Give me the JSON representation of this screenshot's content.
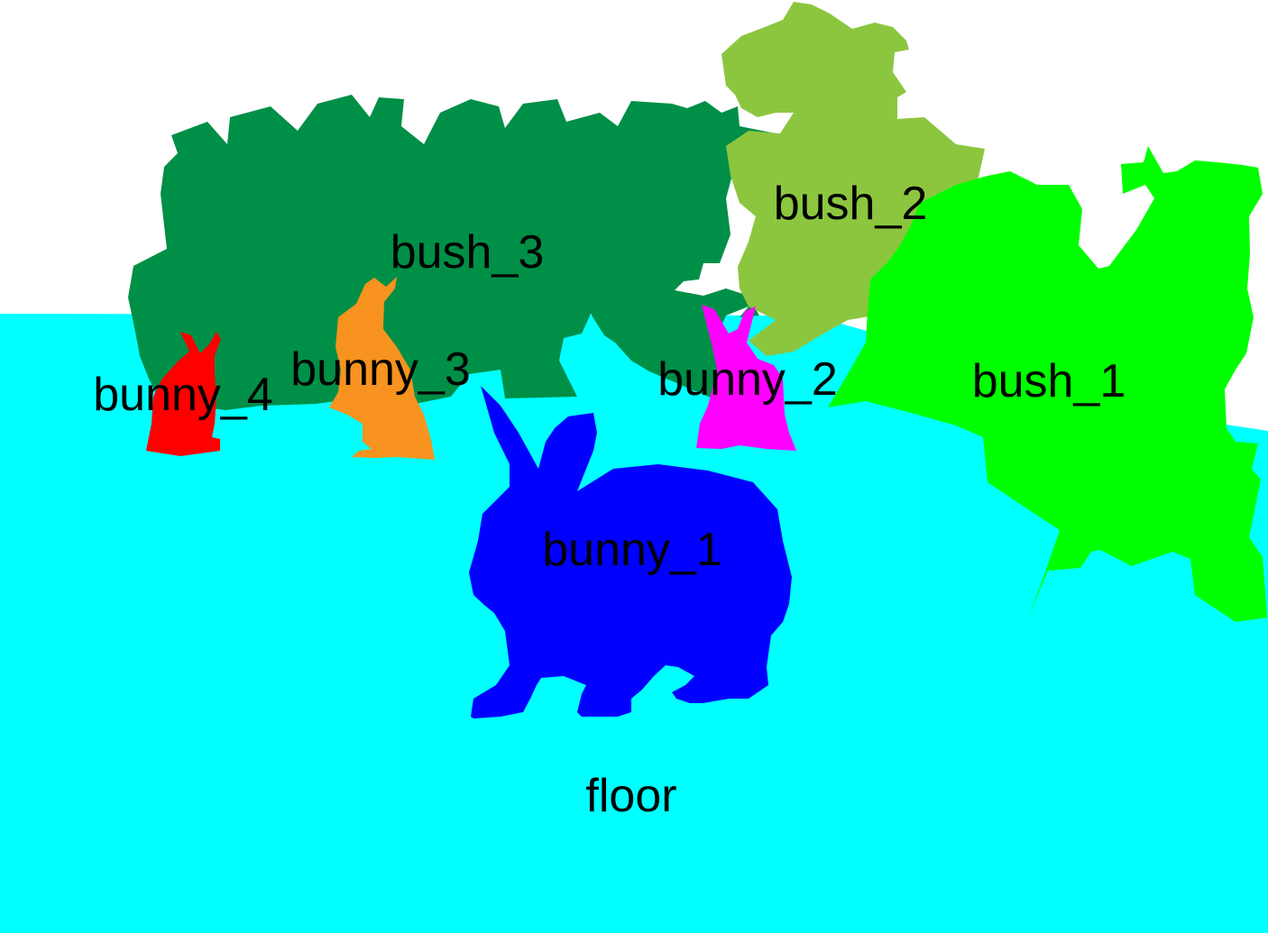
{
  "scene": {
    "regions": [
      {
        "id": "floor",
        "label": "floor",
        "color": "#00ffff"
      },
      {
        "id": "bush_3",
        "label": "bush_3",
        "color": "#008f47"
      },
      {
        "id": "bush_2",
        "label": "bush_2",
        "color": "#8cc63f"
      },
      {
        "id": "bush_1",
        "label": "bush_1",
        "color": "#00ff00"
      },
      {
        "id": "bunny_4",
        "label": "bunny_4",
        "color": "#ff0000"
      },
      {
        "id": "bunny_3",
        "label": "bunny_3",
        "color": "#f7931e"
      },
      {
        "id": "bunny_2",
        "label": "bunny_2",
        "color": "#ff00ff"
      },
      {
        "id": "bunny_1",
        "label": "bunny_1",
        "color": "#0000ff"
      }
    ]
  }
}
